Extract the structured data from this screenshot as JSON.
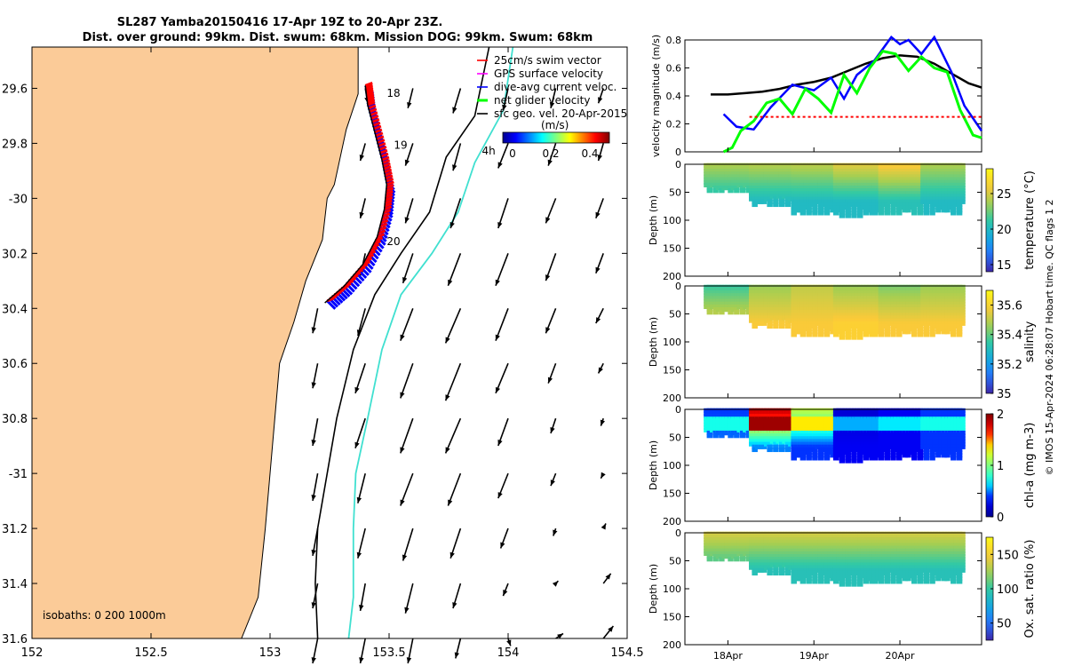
{
  "header": {
    "title_line1": "SL287 Yamba20150416 17-Apr 19Z to 20-Apr 23Z.",
    "title_line2": "Dist. over ground: 99km. Dist. swum: 68km. Mission DOG: 99km. Swum: 68km"
  },
  "credit": "© IMOS 15-Apr-2024 06:28:07 Hobart time. QC flags 1  2",
  "colors": {
    "land": "#fbcb98",
    "swim_vector": "#ff0000",
    "gps_surface": "#ff00ff",
    "dive_avg_current": "#0000ff",
    "net_glider": "#00ff00",
    "sfc_geo": "#000000",
    "isobath_200": "#000000",
    "isobath_1000": "#40e0d0"
  },
  "chart_data": [
    {
      "type": "scatter",
      "panel": "map",
      "xlim": [
        152,
        154.5
      ],
      "ylim": [
        -31.6,
        -29.45
      ],
      "x_ticks": [
        152,
        152.5,
        153,
        153.5,
        154,
        154.5
      ],
      "x_tick_labels": [
        "152",
        "152.5",
        "153",
        "153.5",
        "154",
        "154.5"
      ],
      "y_ticks": [
        -29.6,
        -29.8,
        -30,
        -30.2,
        -30.4,
        -30.6,
        -30.8,
        -31,
        -31.2,
        -31.4,
        -31.6
      ],
      "y_tick_labels": [
        "29.6",
        "29.8",
        "-30",
        "30.2",
        "30.4",
        "30.6",
        "30.8",
        "-31",
        "31.2",
        "31.4",
        "31.6"
      ],
      "legend": {
        "placement": "top-right",
        "entries": [
          "25cm/s swim vector",
          "GPS surface velocity",
          "dive-avg current veloc.",
          "net glider velocity",
          "sfc geo. vel. 20-Apr-2015"
        ]
      },
      "colorbar": {
        "label": "(m/s)",
        "ticks": [
          "0",
          "0.2",
          "0.4"
        ],
        "range": [
          -0.05,
          0.5
        ]
      },
      "isobath_label": "isobaths: 0   200  1000m",
      "day_labels": [
        {
          "text": "18",
          "x": 153.49,
          "y": -29.63
        },
        {
          "text": "19",
          "x": 153.52,
          "y": -29.82
        },
        {
          "text": "20",
          "x": 153.49,
          "y": -30.17
        },
        {
          "text": "4h",
          "x": 153.89,
          "y": -29.84
        }
      ],
      "glider_track": [
        {
          "lon": 153.4,
          "lat": -29.59
        },
        {
          "lon": 153.41,
          "lat": -29.66
        },
        {
          "lon": 153.44,
          "lat": -29.76
        },
        {
          "lon": 153.47,
          "lat": -29.86
        },
        {
          "lon": 153.49,
          "lat": -29.95
        },
        {
          "lon": 153.48,
          "lat": -30.04
        },
        {
          "lon": 153.45,
          "lat": -30.14
        },
        {
          "lon": 153.39,
          "lat": -30.24
        },
        {
          "lon": 153.31,
          "lat": -30.32
        },
        {
          "lon": 153.23,
          "lat": -30.38
        }
      ],
      "isobath_200": [
        {
          "lon": 153.92,
          "lat": -29.45
        },
        {
          "lon": 153.86,
          "lat": -29.7
        },
        {
          "lon": 153.74,
          "lat": -29.85
        },
        {
          "lon": 153.67,
          "lat": -30.05
        },
        {
          "lon": 153.55,
          "lat": -30.2
        },
        {
          "lon": 153.44,
          "lat": -30.35
        },
        {
          "lon": 153.35,
          "lat": -30.55
        },
        {
          "lon": 153.28,
          "lat": -30.8
        },
        {
          "lon": 153.24,
          "lat": -31.0
        },
        {
          "lon": 153.2,
          "lat": -31.2
        },
        {
          "lon": 153.19,
          "lat": -31.4
        },
        {
          "lon": 153.2,
          "lat": -31.6
        }
      ],
      "isobath_1000": [
        {
          "lon": 154.02,
          "lat": -29.45
        },
        {
          "lon": 153.98,
          "lat": -29.68
        },
        {
          "lon": 153.86,
          "lat": -29.87
        },
        {
          "lon": 153.79,
          "lat": -30.05
        },
        {
          "lon": 153.68,
          "lat": -30.2
        },
        {
          "lon": 153.55,
          "lat": -30.35
        },
        {
          "lon": 153.47,
          "lat": -30.55
        },
        {
          "lon": 153.41,
          "lat": -30.8
        },
        {
          "lon": 153.36,
          "lat": -31.0
        },
        {
          "lon": 153.35,
          "lat": -31.2
        },
        {
          "lon": 153.35,
          "lat": -31.45
        },
        {
          "lon": 153.33,
          "lat": -31.6
        }
      ],
      "coastline": [
        {
          "lon": 153.37,
          "lat": -29.45
        },
        {
          "lon": 153.37,
          "lat": -29.62
        },
        {
          "lon": 153.32,
          "lat": -29.75
        },
        {
          "lon": 153.27,
          "lat": -29.95
        },
        {
          "lon": 153.24,
          "lat": -30.0
        },
        {
          "lon": 153.22,
          "lat": -30.15
        },
        {
          "lon": 153.15,
          "lat": -30.3
        },
        {
          "lon": 153.1,
          "lat": -30.45
        },
        {
          "lon": 153.04,
          "lat": -30.6
        },
        {
          "lon": 153.02,
          "lat": -30.8
        },
        {
          "lon": 153.0,
          "lat": -31.0
        },
        {
          "lon": 152.98,
          "lat": -31.2
        },
        {
          "lon": 152.95,
          "lat": -31.45
        },
        {
          "lon": 152.88,
          "lat": -31.6
        }
      ],
      "geo_velocity_field": {
        "lon": [
          153.2,
          153.4,
          153.6,
          153.8,
          154.0,
          154.2,
          154.4
        ],
        "lat": [
          -29.6,
          -29.8,
          -30.0,
          -30.2,
          -30.4,
          -30.6,
          -30.8,
          -31.0,
          -31.2,
          -31.4,
          -31.6
        ],
        "u": [
          [
            0,
            0.01,
            -0.02,
            -0.03,
            -0.02,
            -0.02,
            -0.02
          ],
          [
            0,
            -0.02,
            -0.03,
            -0.03,
            -0.04,
            -0.03,
            -0.02
          ],
          [
            0,
            -0.02,
            -0.03,
            -0.04,
            -0.04,
            -0.04,
            -0.03
          ],
          [
            0,
            -0.02,
            -0.04,
            -0.05,
            -0.05,
            -0.04,
            -0.03
          ],
          [
            -0.02,
            -0.03,
            -0.05,
            -0.06,
            -0.05,
            -0.04,
            -0.03
          ],
          [
            -0.02,
            -0.04,
            -0.05,
            -0.06,
            -0.05,
            -0.03,
            -0.02
          ],
          [
            -0.02,
            -0.04,
            -0.05,
            -0.06,
            -0.04,
            -0.02,
            -0.01
          ],
          [
            -0.02,
            -0.03,
            -0.05,
            -0.05,
            -0.04,
            -0.02,
            -0.01
          ],
          [
            -0.02,
            -0.03,
            -0.04,
            -0.04,
            -0.03,
            -0.01,
            0.01
          ],
          [
            -0.02,
            -0.02,
            -0.03,
            -0.03,
            -0.02,
            0.01,
            0.03
          ],
          [
            -0.02,
            -0.02,
            -0.02,
            -0.02,
            0.01,
            0.03,
            0.04
          ]
        ],
        "v": [
          [
            0,
            -0.06,
            -0.08,
            -0.1,
            -0.09,
            -0.08,
            -0.06
          ],
          [
            0,
            -0.07,
            -0.09,
            -0.11,
            -0.1,
            -0.09,
            -0.07
          ],
          [
            0,
            -0.08,
            -0.1,
            -0.12,
            -0.12,
            -0.1,
            -0.08
          ],
          [
            0,
            -0.09,
            -0.12,
            -0.13,
            -0.13,
            -0.11,
            -0.08
          ],
          [
            -0.1,
            -0.11,
            -0.13,
            -0.14,
            -0.13,
            -0.1,
            -0.06
          ],
          [
            -0.1,
            -0.12,
            -0.14,
            -0.15,
            -0.12,
            -0.08,
            -0.04
          ],
          [
            -0.11,
            -0.12,
            -0.14,
            -0.14,
            -0.11,
            -0.06,
            -0.03
          ],
          [
            -0.11,
            -0.12,
            -0.13,
            -0.13,
            -0.1,
            -0.05,
            -0.02
          ],
          [
            -0.11,
            -0.12,
            -0.13,
            -0.12,
            -0.08,
            -0.03,
            0.02
          ],
          [
            -0.1,
            -0.11,
            -0.12,
            -0.1,
            -0.05,
            0.01,
            0.04
          ],
          [
            -0.1,
            -0.1,
            -0.1,
            -0.08,
            -0.03,
            0.02,
            0.05
          ]
        ]
      }
    },
    {
      "type": "line",
      "panel": "velocity",
      "ylabel": "velocity magnitude (m/s)",
      "ylim": [
        0,
        0.8
      ],
      "y_ticks": [
        0,
        0.2,
        0.4,
        0.6,
        0.8
      ],
      "xlim": [
        17.5,
        20.95
      ],
      "series": [
        {
          "key": "sfc_geo",
          "color": "#000000",
          "x": [
            17.8,
            18.0,
            18.2,
            18.4,
            18.6,
            18.8,
            19.0,
            19.2,
            19.4,
            19.6,
            19.8,
            20.0,
            20.2,
            20.4,
            20.6,
            20.8,
            20.95
          ],
          "y": [
            0.41,
            0.41,
            0.42,
            0.43,
            0.45,
            0.48,
            0.5,
            0.53,
            0.58,
            0.63,
            0.67,
            0.69,
            0.68,
            0.63,
            0.56,
            0.49,
            0.46
          ]
        },
        {
          "key": "dive_avg",
          "color": "#0000ff",
          "x": [
            17.95,
            18.1,
            18.3,
            18.5,
            18.75,
            19.0,
            19.2,
            19.35,
            19.5,
            19.7,
            19.9,
            20.0,
            20.1,
            20.25,
            20.4,
            20.6,
            20.75,
            20.95
          ],
          "y": [
            0.27,
            0.18,
            0.16,
            0.32,
            0.48,
            0.44,
            0.53,
            0.38,
            0.55,
            0.65,
            0.82,
            0.77,
            0.8,
            0.7,
            0.82,
            0.57,
            0.33,
            0.15
          ]
        },
        {
          "key": "net_glider",
          "color": "#00ff00",
          "x": [
            17.95,
            18.05,
            18.15,
            18.3,
            18.45,
            18.6,
            18.75,
            18.9,
            19.05,
            19.2,
            19.35,
            19.5,
            19.65,
            19.8,
            19.95,
            20.1,
            20.25,
            20.4,
            20.55,
            20.7,
            20.85,
            20.95
          ],
          "y": [
            0.0,
            0.03,
            0.15,
            0.22,
            0.35,
            0.38,
            0.27,
            0.45,
            0.38,
            0.28,
            0.55,
            0.42,
            0.6,
            0.72,
            0.7,
            0.58,
            0.68,
            0.6,
            0.57,
            0.3,
            0.12,
            0.1
          ]
        },
        {
          "key": "swim",
          "color": "#ff0000",
          "x": [
            18.25,
            18.5,
            18.75,
            19.0,
            19.3,
            19.5,
            19.75,
            20.0,
            20.25,
            20.5,
            20.75,
            20.95
          ],
          "y": [
            0.25,
            0.25,
            0.25,
            0.25,
            0.25,
            0.25,
            0.25,
            0.25,
            0.25,
            0.25,
            0.25,
            0.25
          ]
        }
      ]
    },
    {
      "type": "heatmap",
      "panel": "temperature",
      "ylabel": "Depth (m)",
      "ylim": [
        200,
        0
      ],
      "y_ticks": [
        0,
        50,
        100,
        150,
        200
      ],
      "colorbar_label": "temperature (°C)",
      "colorbar_range": [
        14,
        28.5
      ],
      "colorbar_ticks": [
        15,
        20,
        25
      ],
      "surface_values": [
        24,
        24.2,
        24.4,
        25.5,
        26.5,
        24
      ],
      "deep_values": [
        20,
        20,
        20,
        20,
        20.5,
        20
      ],
      "max_depth_m": [
        50,
        75,
        92,
        95,
        90,
        90
      ]
    },
    {
      "type": "heatmap",
      "panel": "salinity",
      "ylabel": "Depth (m)",
      "ylim": [
        200,
        0
      ],
      "y_ticks": [
        0,
        50,
        100,
        150,
        200
      ],
      "colorbar_label": "salinity",
      "colorbar_range": [
        35,
        35.7
      ],
      "colorbar_ticks": [
        35,
        35.2,
        35.4,
        35.6
      ],
      "surface_values": [
        35.35,
        35.45,
        35.5,
        35.45,
        35.42,
        35.45
      ],
      "deep_values": [
        35.55,
        35.58,
        35.58,
        35.6,
        35.58,
        35.58
      ],
      "max_depth_m": [
        50,
        75,
        92,
        95,
        90,
        90
      ]
    },
    {
      "type": "heatmap",
      "panel": "chlorophyll",
      "ylabel": "Depth (m)",
      "ylim": [
        200,
        0
      ],
      "y_ticks": [
        0,
        50,
        100,
        150,
        200
      ],
      "colorbar_label": "chl-a (mg m-3)",
      "colorbar_range": [
        0,
        2
      ],
      "colorbar_ticks": [
        0,
        1,
        2
      ],
      "surface_values": [
        0.4,
        1.9,
        1.2,
        0.2,
        0.3,
        0.4
      ],
      "deep_values": [
        0.5,
        0.5,
        0.4,
        0.3,
        0.3,
        0.4
      ],
      "max_depth_m": [
        50,
        75,
        92,
        95,
        90,
        90
      ]
    },
    {
      "type": "heatmap",
      "panel": "oxygen",
      "ylabel": "Depth (m)",
      "ylim": [
        200,
        0
      ],
      "y_ticks": [
        0,
        50,
        100,
        150,
        200
      ],
      "colorbar_label": "Ox. sat. ratio (%)",
      "colorbar_range": [
        25,
        175
      ],
      "colorbar_ticks": [
        50,
        100,
        150
      ],
      "surface_values": [
        140,
        140,
        140,
        140,
        140,
        140
      ],
      "deep_values": [
        95,
        92,
        92,
        92,
        92,
        92
      ],
      "max_depth_m": [
        50,
        75,
        92,
        95,
        90,
        90
      ]
    },
    {
      "type": "line",
      "panel": "time-axis",
      "x_ticks": [
        18,
        19,
        20
      ],
      "x_tick_labels": [
        "18Apr",
        "19Apr",
        "20Apr"
      ]
    }
  ]
}
